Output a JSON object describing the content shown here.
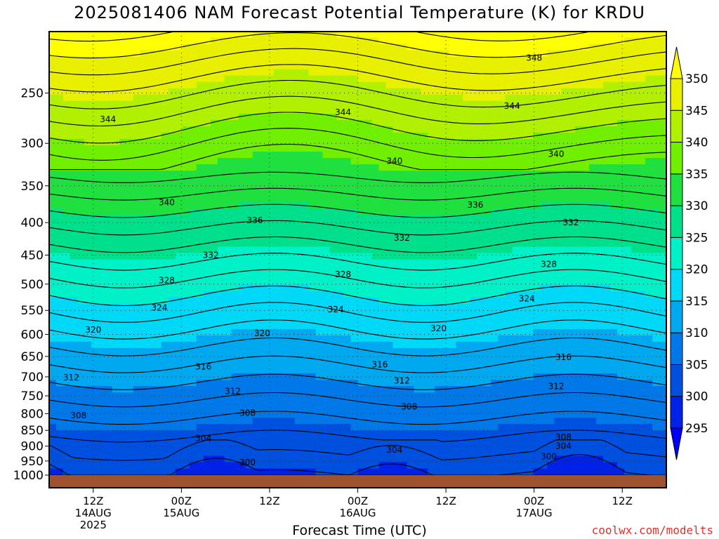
{
  "chart_data": {
    "type": "heatmap",
    "title": "2025081406 NAM Forecast Potential Temperature (K) for KRDU",
    "xlabel": "Forecast Time (UTC)",
    "ylabel": "",
    "y_scale": "log",
    "ylim": [
      1000,
      200
    ],
    "y_ticks": [
      250,
      300,
      350,
      400,
      450,
      500,
      550,
      600,
      650,
      700,
      750,
      800,
      850,
      900,
      950,
      1000
    ],
    "x_range_hours": [
      0,
      84
    ],
    "x_ticks": [
      {
        "hour": 6,
        "line1": "12Z",
        "line2": "14AUG",
        "line3": "2025"
      },
      {
        "hour": 18,
        "line1": "00Z",
        "line2": "15AUG",
        "line3": ""
      },
      {
        "hour": 30,
        "line1": "12Z",
        "line2": "",
        "line3": ""
      },
      {
        "hour": 42,
        "line1": "00Z",
        "line2": "16AUG",
        "line3": ""
      },
      {
        "hour": 54,
        "line1": "12Z",
        "line2": "",
        "line3": ""
      },
      {
        "hour": 66,
        "line1": "00Z",
        "line2": "17AUG",
        "line3": ""
      },
      {
        "hour": 78,
        "line1": "12Z",
        "line2": "",
        "line3": ""
      }
    ],
    "colorbar": {
      "levels": [
        295,
        300,
        305,
        310,
        315,
        320,
        325,
        330,
        335,
        340,
        345,
        350
      ],
      "colors": [
        "#0000ff",
        "#0022e6",
        "#0050e0",
        "#0078e8",
        "#00a8f0",
        "#00d8f8",
        "#00f0c8",
        "#00e08a",
        "#20e040",
        "#70f000",
        "#b0f000",
        "#e8f000",
        "#ffff00"
      ]
    },
    "contour_interval": 4,
    "contour_labels": [
      {
        "value": 348,
        "hour": 66,
        "p": 220
      },
      {
        "value": 344,
        "hour": 8,
        "p": 275
      },
      {
        "value": 344,
        "hour": 40,
        "p": 268
      },
      {
        "value": 344,
        "hour": 63,
        "p": 262
      },
      {
        "value": 340,
        "hour": 16,
        "p": 372
      },
      {
        "value": 340,
        "hour": 47,
        "p": 320
      },
      {
        "value": 340,
        "hour": 69,
        "p": 312
      },
      {
        "value": 336,
        "hour": 28,
        "p": 397
      },
      {
        "value": 336,
        "hour": 58,
        "p": 375
      },
      {
        "value": 332,
        "hour": 22,
        "p": 450
      },
      {
        "value": 332,
        "hour": 48,
        "p": 423
      },
      {
        "value": 332,
        "hour": 71,
        "p": 400
      },
      {
        "value": 328,
        "hour": 16,
        "p": 493
      },
      {
        "value": 328,
        "hour": 40,
        "p": 483
      },
      {
        "value": 328,
        "hour": 68,
        "p": 465
      },
      {
        "value": 324,
        "hour": 15,
        "p": 545
      },
      {
        "value": 324,
        "hour": 39,
        "p": 548
      },
      {
        "value": 324,
        "hour": 65,
        "p": 527
      },
      {
        "value": 320,
        "hour": 6,
        "p": 590
      },
      {
        "value": 320,
        "hour": 29,
        "p": 598
      },
      {
        "value": 320,
        "hour": 53,
        "p": 587
      },
      {
        "value": 316,
        "hour": 21,
        "p": 675
      },
      {
        "value": 316,
        "hour": 45,
        "p": 670
      },
      {
        "value": 316,
        "hour": 70,
        "p": 652
      },
      {
        "value": 312,
        "hour": 3,
        "p": 702
      },
      {
        "value": 312,
        "hour": 25,
        "p": 738
      },
      {
        "value": 312,
        "hour": 48,
        "p": 710
      },
      {
        "value": 312,
        "hour": 69,
        "p": 725
      },
      {
        "value": 308,
        "hour": 4,
        "p": 805
      },
      {
        "value": 308,
        "hour": 27,
        "p": 798
      },
      {
        "value": 308,
        "hour": 49,
        "p": 780
      },
      {
        "value": 308,
        "hour": 70,
        "p": 872
      },
      {
        "value": 304,
        "hour": 21,
        "p": 875
      },
      {
        "value": 304,
        "hour": 47,
        "p": 912
      },
      {
        "value": 304,
        "hour": 70,
        "p": 900
      },
      {
        "value": 300,
        "hour": 27,
        "p": 955
      },
      {
        "value": 300,
        "hour": 68,
        "p": 935
      }
    ]
  },
  "credit": "coolwx.com/modelts"
}
